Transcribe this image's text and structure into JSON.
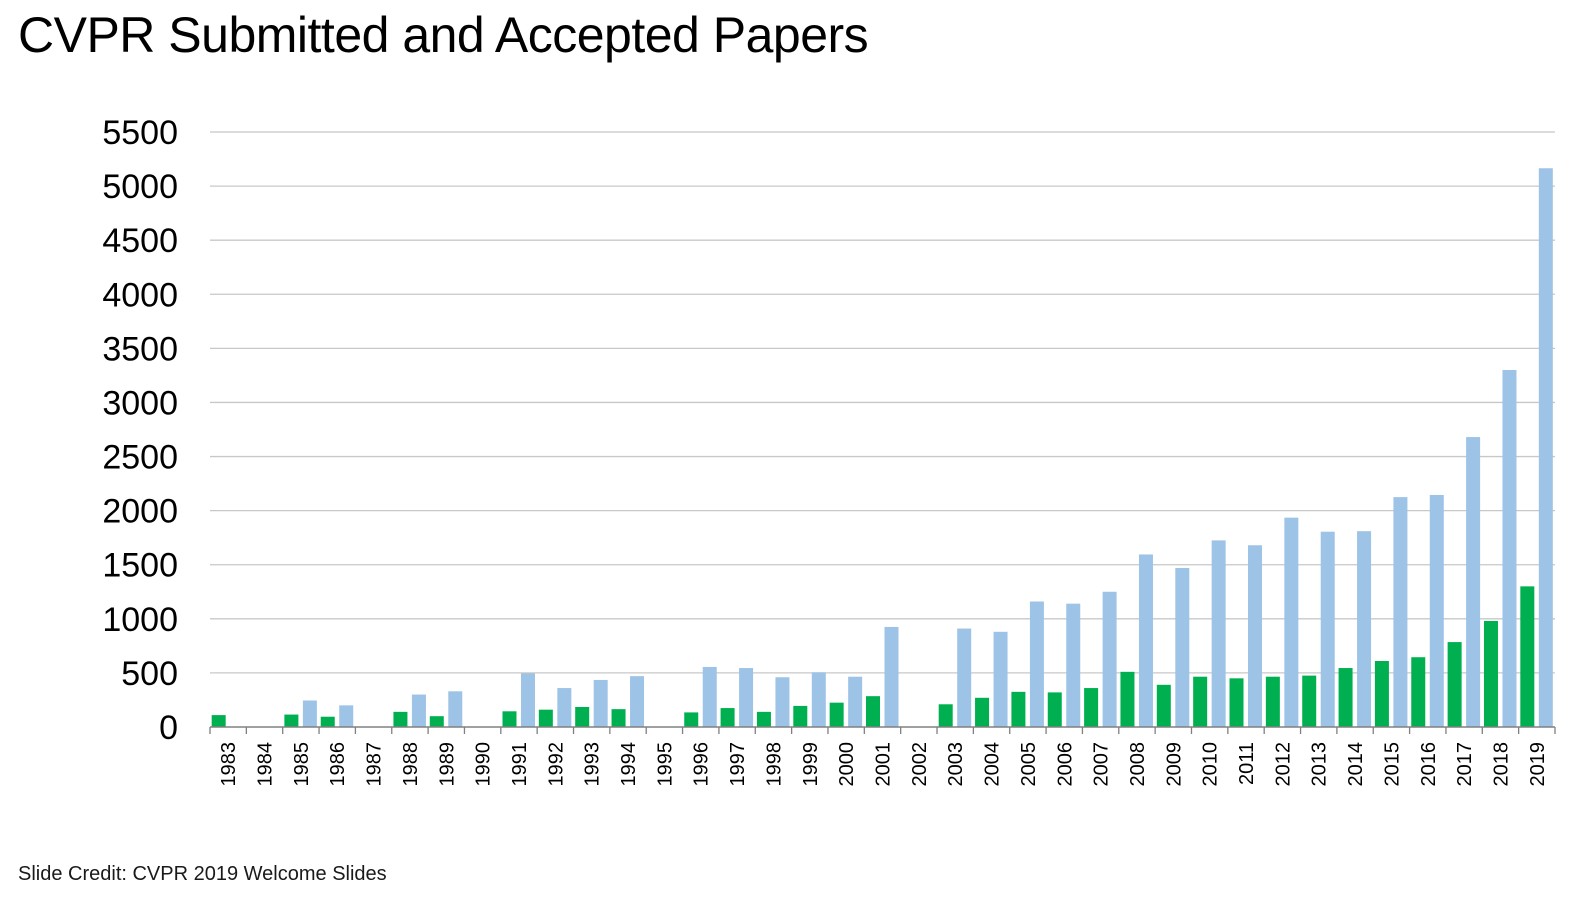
{
  "slide": {
    "title": "CVPR Submitted and Accepted Papers",
    "credit": "Slide Credit: CVPR 2019 Welcome Slides"
  },
  "chart_data": {
    "type": "bar",
    "title": "CVPR Submitted and Accepted Papers",
    "xlabel": "",
    "ylabel": "",
    "ylim": [
      0,
      5500
    ],
    "yticks": [
      0,
      500,
      1000,
      1500,
      2000,
      2500,
      3000,
      3500,
      4000,
      4500,
      5000,
      5500
    ],
    "grid": true,
    "legend": "none",
    "categories": [
      "1983",
      "1984",
      "1985",
      "1986",
      "1987",
      "1988",
      "1989",
      "1990",
      "1991",
      "1992",
      "1993",
      "1994",
      "1995",
      "1996",
      "1997",
      "1998",
      "1999",
      "2000",
      "2001",
      "2002",
      "2003",
      "2004",
      "2005",
      "2006",
      "2007",
      "2008",
      "2009",
      "2010",
      "2011",
      "2012",
      "2013",
      "2014",
      "2015",
      "2016",
      "2017",
      "2018",
      "2019"
    ],
    "series": [
      {
        "color": "#00b050",
        "values": [
          110,
          0,
          115,
          95,
          0,
          140,
          100,
          0,
          145,
          160,
          185,
          165,
          0,
          135,
          175,
          140,
          195,
          225,
          285,
          0,
          210,
          270,
          325,
          320,
          360,
          510,
          390,
          465,
          450,
          465,
          475,
          545,
          610,
          645,
          785,
          980,
          1300
        ]
      },
      {
        "color": "#9dc3e6",
        "values": [
          0,
          0,
          245,
          200,
          0,
          300,
          330,
          0,
          495,
          360,
          435,
          470,
          0,
          555,
          545,
          460,
          505,
          465,
          925,
          0,
          910,
          880,
          1160,
          1140,
          1250,
          1595,
          1470,
          1725,
          1680,
          1935,
          1805,
          1810,
          2125,
          2145,
          2680,
          3300,
          5165
        ]
      }
    ],
    "grid_color": "#c8c8c8",
    "axis_color": "#808080"
  }
}
